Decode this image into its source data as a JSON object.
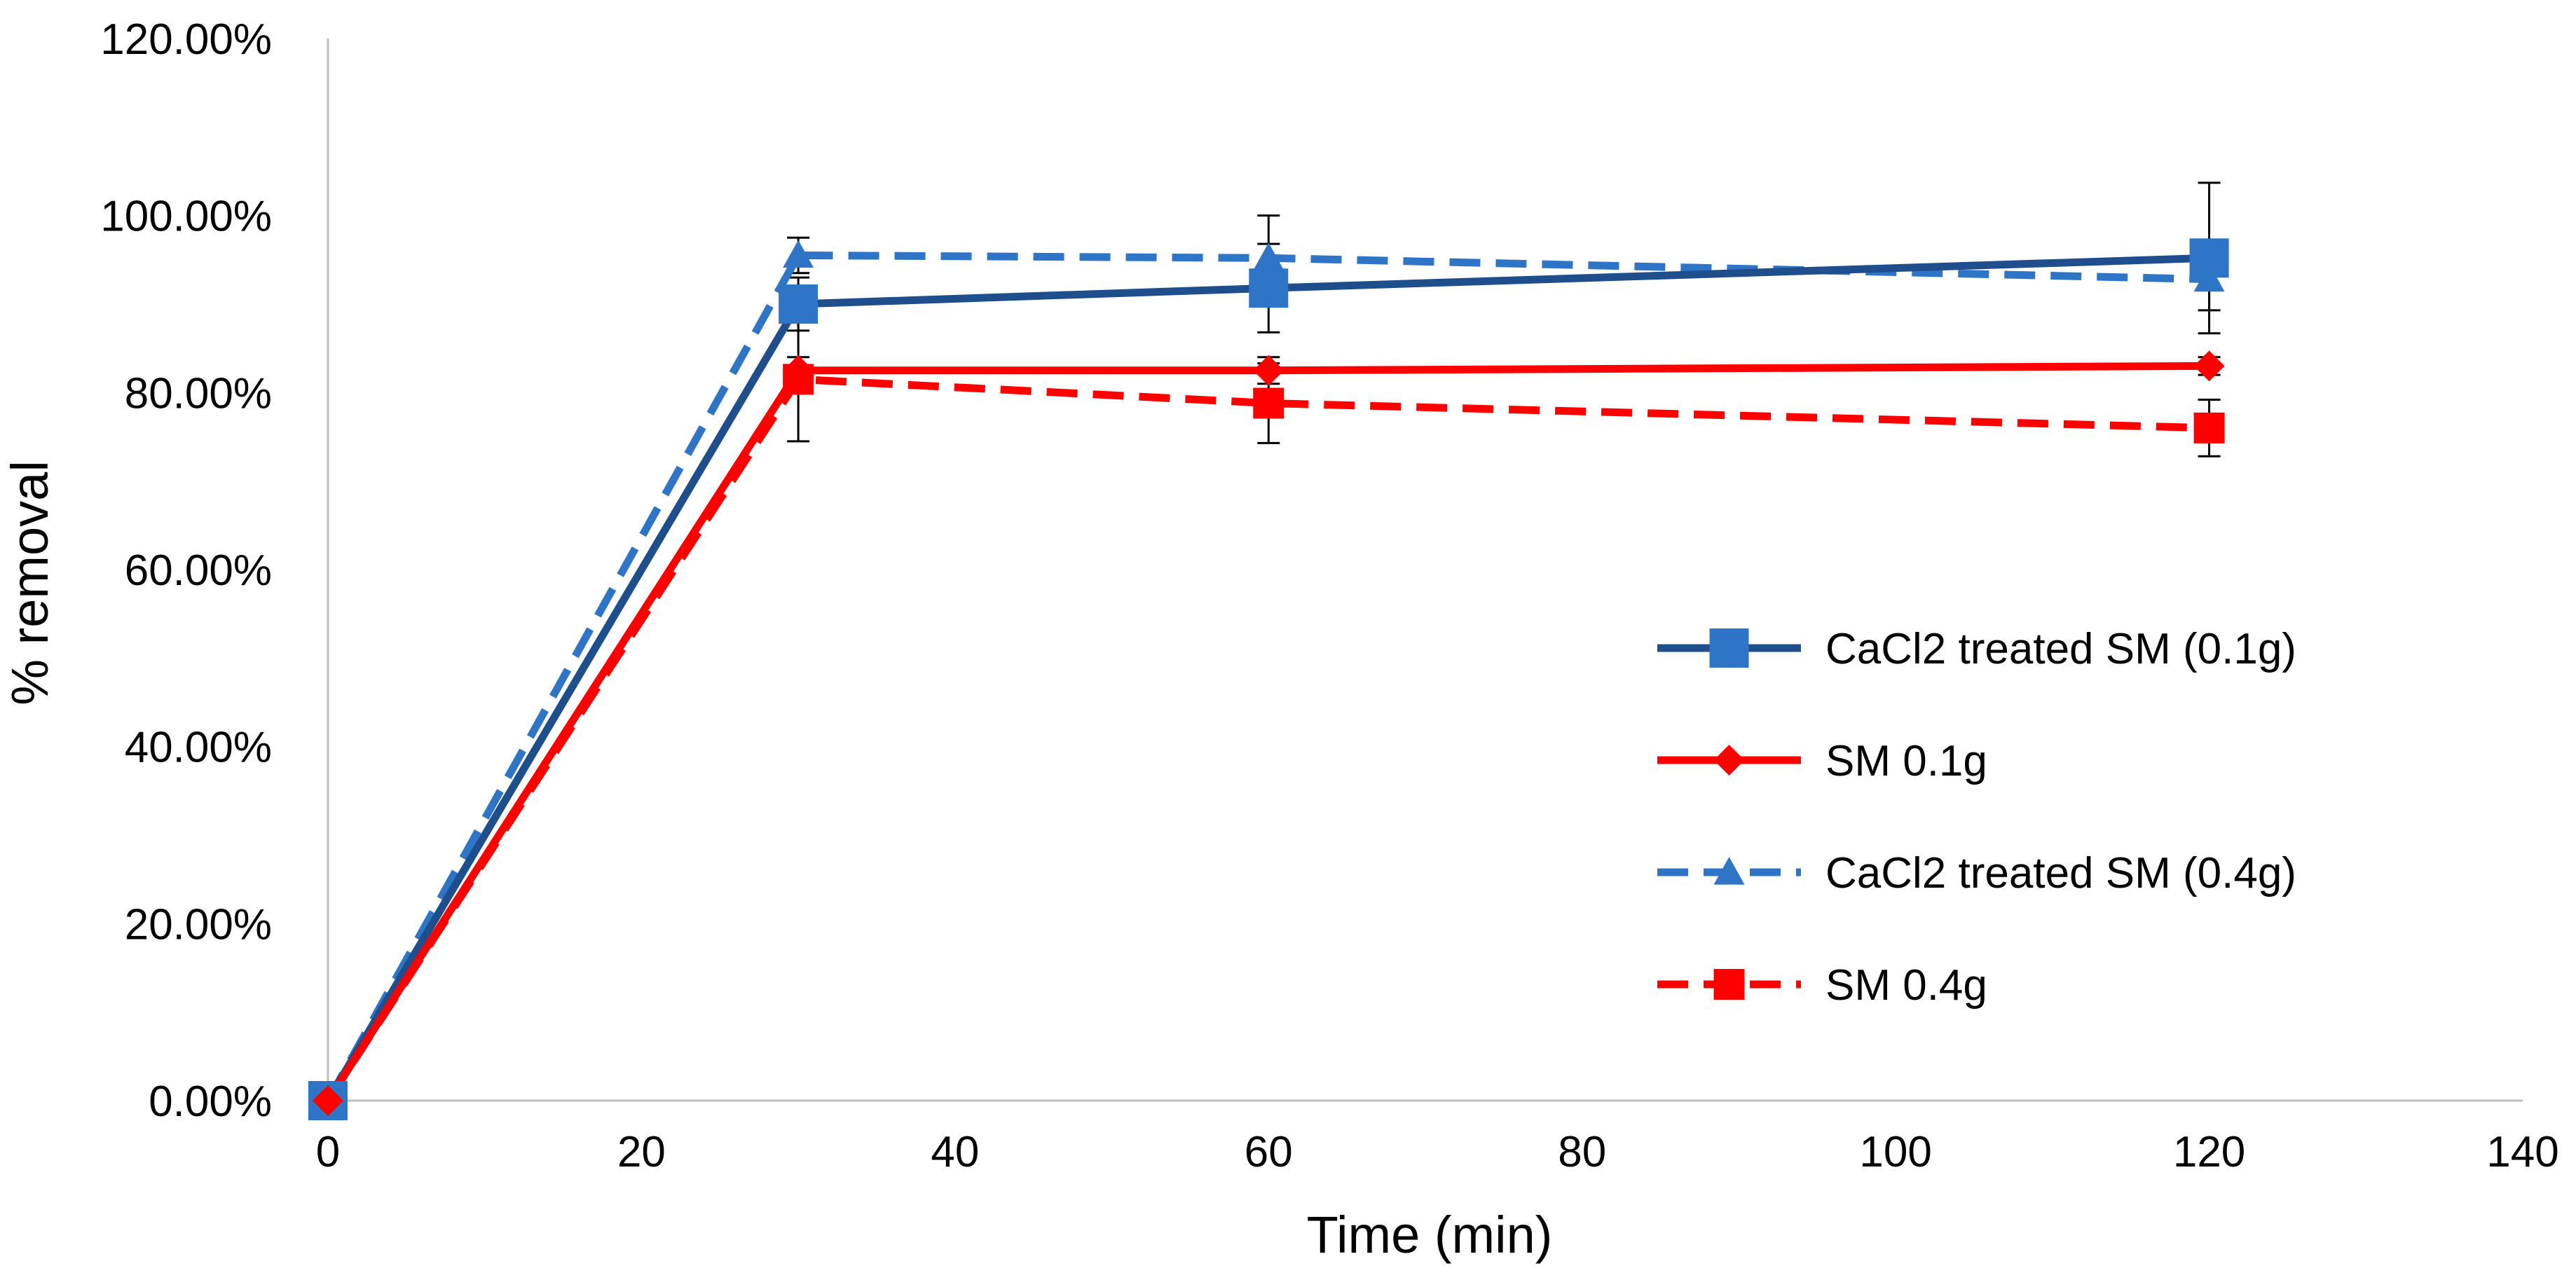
{
  "chart_data": {
    "type": "line",
    "title": "",
    "xlabel": "Time (min)",
    "ylabel": "% removal",
    "xlim": [
      0,
      140
    ],
    "ylim": [
      0,
      120
    ],
    "xticks": [
      0,
      20,
      40,
      60,
      80,
      100,
      120,
      140
    ],
    "xtick_labels": [
      "0",
      "20",
      "40",
      "60",
      "80",
      "100",
      "120",
      "140"
    ],
    "yticks": [
      0,
      20,
      40,
      60,
      80,
      100,
      120
    ],
    "ytick_labels": [
      "0.00%",
      "20.00%",
      "40.00%",
      "60.00%",
      "80.00%",
      "100.00%",
      "120.00%"
    ],
    "grid": false,
    "legend_position": "right",
    "x": [
      0,
      30,
      60,
      120
    ],
    "series": [
      {
        "name": "CaCl2 treated SM (0.1g)",
        "values": [
          0,
          90,
          91.8,
          95.2
        ],
        "errors": [
          0,
          3,
          5,
          8.5
        ],
        "color": "#1F4E8C",
        "marker_color": "#2E75C8",
        "marker": "square",
        "dashed": false
      },
      {
        "name": "SM 0.1g",
        "values": [
          0,
          82.5,
          82.5,
          83
        ],
        "errors": [
          0,
          1.5,
          1.5,
          1
        ],
        "color": "#FF0000",
        "marker_color": "#FF0000",
        "marker": "diamond",
        "dashed": false
      },
      {
        "name": "CaCl2 treated SM (0.4g)",
        "values": [
          0,
          95.5,
          95.2,
          92.8
        ],
        "errors": [
          0,
          2,
          4.8,
          3.5
        ],
        "color": "#2E75C8",
        "marker_color": "#2E75C8",
        "marker": "triangle",
        "dashed": true
      },
      {
        "name": "SM 0.4g",
        "values": [
          0,
          81.5,
          78.8,
          76
        ],
        "errors": [
          0,
          7,
          4.5,
          3.2
        ],
        "color": "#FF0000",
        "marker_color": "#FF0000",
        "marker": "square",
        "dashed": true
      }
    ]
  }
}
